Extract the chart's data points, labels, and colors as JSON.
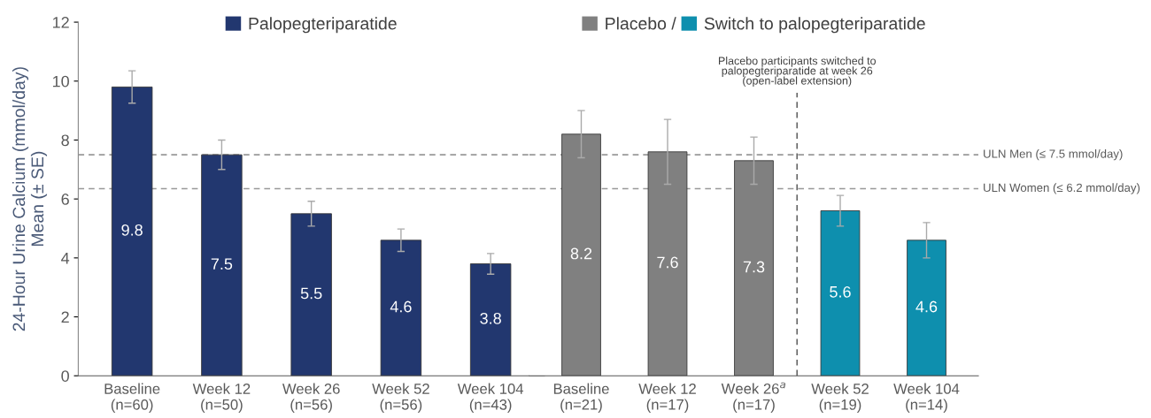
{
  "chart_data": [
    {
      "type": "bar",
      "ylabel": "24-Hour Urine Calcium (mmol/day)\nMean (± SE)",
      "categories": [
        "Baseline\n(n=60)",
        "Week 12\n(n=50)",
        "Week 26\n(n=56)",
        "Week 52\n(n=56)",
        "Week 104\n(n=43)"
      ],
      "series": [
        {
          "name": "Palopegteriparatide",
          "color": "#22376f",
          "values": [
            9.8,
            7.5,
            5.5,
            4.6,
            3.8
          ],
          "errors": [
            0.55,
            0.5,
            0.42,
            0.38,
            0.35
          ]
        }
      ],
      "ylim": [
        0,
        12
      ],
      "yticks": [
        0,
        2,
        4,
        6,
        8,
        10,
        12
      ],
      "data_labels": true,
      "legend": "top",
      "grid": false,
      "ref_lines": [
        {
          "axis": "y",
          "value": 7.5,
          "color": "#999999",
          "line_style": "dashed"
        },
        {
          "axis": "y",
          "value": 6.35,
          "color": "#999999",
          "line_style": "dashed"
        }
      ]
    },
    {
      "type": "bar",
      "categories": [
        "Baseline\n(n=21)",
        "Week 12\n(n=17)",
        "Week 26$^{a}$\n(n=17)",
        "Week 52\n(n=19)",
        "Week 104\n(n=14)"
      ],
      "series": [
        {
          "name": "Placebo /",
          "color": "#808080",
          "values": [
            8.2,
            7.6,
            7.3,
            null,
            null
          ],
          "errors": [
            0.8,
            1.1,
            0.8,
            null,
            null
          ]
        },
        {
          "name": "Switch to palopegteriparatide",
          "color": "#0e8fae",
          "values": [
            null,
            null,
            null,
            5.6,
            4.6
          ],
          "errors": [
            null,
            null,
            null,
            0.52,
            0.6
          ]
        }
      ],
      "ylim": [
        0,
        12
      ],
      "tick_labels": "x",
      "data_labels": true,
      "legend": "top",
      "grid": false,
      "ref_lines": [
        {
          "axis": "y",
          "value": 7.5,
          "label": "ULN Men (≤ 7.5 mmol/day)",
          "color": "#999999",
          "line_style": "dashed"
        },
        {
          "axis": "y",
          "value": 6.35,
          "label": "ULN Women (≤ 6.2 mmol/day)",
          "color": "#999999",
          "line_style": "dashed"
        }
      ],
      "annotations": [
        "Placebo participants switched to\npalopegteriparatide at week 26\n(open-label extension)"
      ]
    }
  ]
}
